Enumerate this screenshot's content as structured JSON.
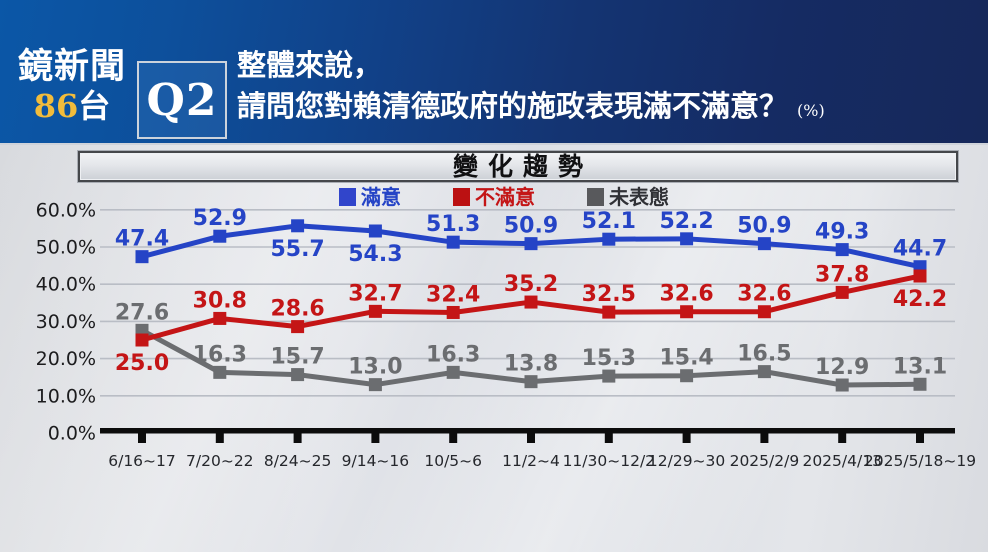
{
  "header": {
    "channel": {
      "name": "鏡新聞",
      "number": "86",
      "suffix": "台"
    },
    "question_tag": "Q2",
    "question": {
      "line1": "整體來說，",
      "line2": "請問您對賴清德政府的施政表現滿不滿意？",
      "unit": "(%)"
    }
  },
  "chart_data": {
    "type": "line",
    "title": "變化趨勢",
    "categories": [
      "6/16~17",
      "7/20~22",
      "8/24~25",
      "9/14~16",
      "10/5~6",
      "11/2~4",
      "11/30~12/2",
      "12/29~30",
      "2025/2/9",
      "2025/4/13",
      "2025/5/18~19"
    ],
    "series": [
      {
        "key": "undecided",
        "name": "未表態",
        "color": "#6b6d70",
        "swatch_color": "#58595c",
        "legend_text_color": "#303136",
        "values": [
          27.6,
          16.3,
          15.7,
          13.0,
          16.3,
          13.8,
          15.3,
          15.4,
          16.5,
          12.9,
          13.1
        ],
        "labels_below": []
      },
      {
        "key": "satisfied",
        "name": "滿意",
        "color": "#2544c6",
        "swatch_color": "#3145cb",
        "legend_text_color": "#2544c6",
        "values": [
          47.4,
          52.9,
          55.7,
          54.3,
          51.3,
          50.9,
          52.1,
          52.2,
          50.9,
          49.3,
          44.7
        ],
        "labels_below": [
          2,
          3
        ]
      },
      {
        "key": "dissatisfied",
        "name": "不滿意",
        "color": "#c41516",
        "swatch_color": "#bb1112",
        "legend_text_color": "#c41516",
        "values": [
          25.0,
          30.8,
          28.6,
          32.7,
          32.4,
          35.2,
          32.5,
          32.6,
          32.6,
          37.8,
          42.2
        ],
        "labels_below": [
          0,
          10
        ]
      }
    ],
    "ylim": [
      0,
      60
    ],
    "ytick_step": 10,
    "ytick_suffix": "%",
    "grid": true,
    "legend_position": "top-center",
    "axis_color": "#0c0c0c",
    "grid_color": "#b9bdc5",
    "ytick_label_color": "#1c1c1e",
    "xtick_label_color": "#25272c"
  }
}
